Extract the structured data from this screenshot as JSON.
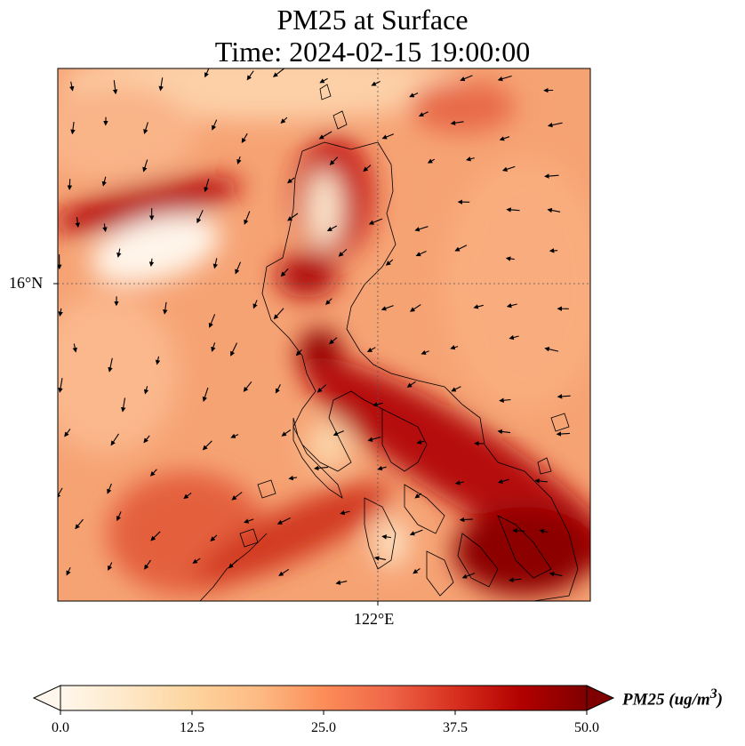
{
  "title": {
    "line1": "PM25 at Surface",
    "line2": "Time: 2024-02-15 19:00:00"
  },
  "axes": {
    "lat_label": "16°N",
    "lon_label": "122°E"
  },
  "colorbar": {
    "label": "PM25 (ug/m",
    "label_sup": "3",
    "label_end": ")",
    "min": 0.0,
    "max": 50.0,
    "ticks": [
      "0.0",
      "12.5",
      "25.0",
      "37.5",
      "50.0"
    ],
    "colormap": [
      "#fff7ec",
      "#fee8c8",
      "#fdd49e",
      "#fdbb84",
      "#fc8d59",
      "#ef6548",
      "#d7301f",
      "#b30000",
      "#7f0000"
    ]
  },
  "field_description_colors": {
    "ocean_base": "#f4a070",
    "land_edge": "#000000",
    "wind_arrow": "#000000"
  }
}
